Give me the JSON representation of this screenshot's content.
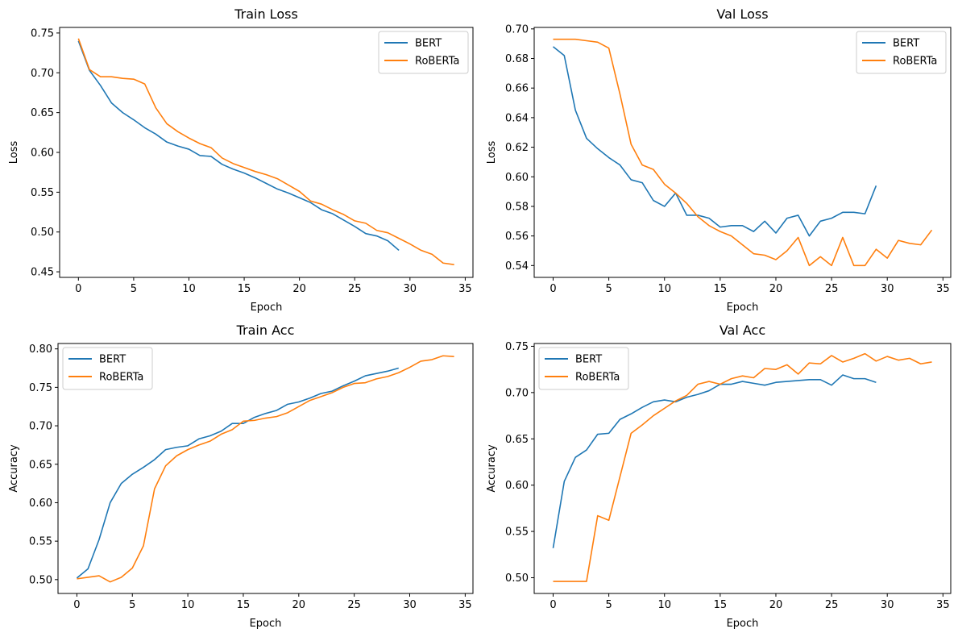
{
  "figure": {
    "background": "#ffffff"
  },
  "colors": {
    "BERT": "#1f77b4",
    "RoBERTa": "#ff7f0e"
  },
  "chart_data": [
    {
      "id": "train-loss",
      "type": "line",
      "title": "Train Loss",
      "xlabel": "Epoch",
      "ylabel": "Loss",
      "xlim": [
        -1.7,
        35.7
      ],
      "ylim": [
        0.443,
        0.757
      ],
      "xticks": [
        0,
        5,
        10,
        15,
        20,
        25,
        30,
        35
      ],
      "yticks": [
        0.45,
        0.5,
        0.55,
        0.6,
        0.65,
        0.7,
        0.75
      ],
      "ytick_labels": [
        "0.45",
        "0.50",
        "0.55",
        "0.60",
        "0.65",
        "0.70",
        "0.75"
      ],
      "legend": "upper right",
      "series": [
        {
          "name": "BERT",
          "color": "#1f77b4",
          "values": [
            0.74,
            0.703,
            0.684,
            0.662,
            0.65,
            0.641,
            0.631,
            0.623,
            0.613,
            0.608,
            0.604,
            0.596,
            0.595,
            0.585,
            0.579,
            0.574,
            0.568,
            0.561,
            0.554,
            0.549,
            0.543,
            0.537,
            0.528,
            0.523,
            0.515,
            0.507,
            0.498,
            0.495,
            0.489,
            0.477
          ]
        },
        {
          "name": "RoBERTa",
          "color": "#ff7f0e",
          "values": [
            0.743,
            0.704,
            0.695,
            0.695,
            0.693,
            0.692,
            0.686,
            0.656,
            0.636,
            0.626,
            0.618,
            0.611,
            0.606,
            0.593,
            0.586,
            0.581,
            0.576,
            0.572,
            0.567,
            0.559,
            0.551,
            0.539,
            0.535,
            0.528,
            0.522,
            0.514,
            0.511,
            0.502,
            0.499,
            0.492,
            0.485,
            0.477,
            0.472,
            0.461,
            0.459
          ]
        }
      ]
    },
    {
      "id": "val-loss",
      "type": "line",
      "title": "Val Loss",
      "xlabel": "Epoch",
      "ylabel": "Loss",
      "xlim": [
        -1.7,
        35.7
      ],
      "ylim": [
        0.532,
        0.701
      ],
      "xticks": [
        0,
        5,
        10,
        15,
        20,
        25,
        30,
        35
      ],
      "yticks": [
        0.54,
        0.56,
        0.58,
        0.6,
        0.62,
        0.64,
        0.66,
        0.68,
        0.7
      ],
      "ytick_labels": [
        "0.54",
        "0.56",
        "0.58",
        "0.60",
        "0.62",
        "0.64",
        "0.66",
        "0.68",
        "0.70"
      ],
      "legend": "upper right",
      "series": [
        {
          "name": "BERT",
          "color": "#1f77b4",
          "values": [
            0.688,
            0.682,
            0.645,
            0.626,
            0.619,
            0.613,
            0.608,
            0.598,
            0.596,
            0.584,
            0.58,
            0.589,
            0.574,
            0.574,
            0.572,
            0.566,
            0.567,
            0.567,
            0.563,
            0.57,
            0.562,
            0.572,
            0.574,
            0.56,
            0.57,
            0.572,
            0.576,
            0.576,
            0.575,
            0.594
          ]
        },
        {
          "name": "RoBERTa",
          "color": "#ff7f0e",
          "values": [
            0.693,
            0.693,
            0.693,
            0.692,
            0.691,
            0.687,
            0.656,
            0.622,
            0.608,
            0.605,
            0.595,
            0.589,
            0.582,
            0.573,
            0.567,
            0.563,
            0.56,
            0.554,
            0.548,
            0.547,
            0.544,
            0.55,
            0.559,
            0.54,
            0.546,
            0.54,
            0.559,
            0.54,
            0.54,
            0.551,
            0.545,
            0.557,
            0.555,
            0.554,
            0.564
          ]
        }
      ]
    },
    {
      "id": "train-acc",
      "type": "line",
      "title": "Train Acc",
      "xlabel": "Epoch",
      "ylabel": "Accuracy",
      "xlim": [
        -1.7,
        35.7
      ],
      "ylim": [
        0.482,
        0.807
      ],
      "xticks": [
        0,
        5,
        10,
        15,
        20,
        25,
        30,
        35
      ],
      "yticks": [
        0.5,
        0.55,
        0.6,
        0.65,
        0.7,
        0.75,
        0.8
      ],
      "ytick_labels": [
        "0.50",
        "0.55",
        "0.60",
        "0.65",
        "0.70",
        "0.75",
        "0.80"
      ],
      "legend": "upper left",
      "series": [
        {
          "name": "BERT",
          "color": "#1f77b4",
          "values": [
            0.502,
            0.514,
            0.552,
            0.6,
            0.625,
            0.637,
            0.646,
            0.656,
            0.669,
            0.672,
            0.674,
            0.683,
            0.687,
            0.693,
            0.703,
            0.703,
            0.711,
            0.716,
            0.72,
            0.728,
            0.731,
            0.736,
            0.742,
            0.745,
            0.752,
            0.758,
            0.765,
            0.768,
            0.771,
            0.775
          ]
        },
        {
          "name": "RoBERTa",
          "color": "#ff7f0e",
          "values": [
            0.501,
            0.503,
            0.505,
            0.497,
            0.503,
            0.515,
            0.544,
            0.618,
            0.648,
            0.661,
            0.669,
            0.675,
            0.68,
            0.689,
            0.695,
            0.706,
            0.707,
            0.71,
            0.712,
            0.717,
            0.725,
            0.733,
            0.738,
            0.743,
            0.75,
            0.755,
            0.756,
            0.761,
            0.764,
            0.769,
            0.776,
            0.784,
            0.786,
            0.791,
            0.79
          ]
        }
      ]
    },
    {
      "id": "val-acc",
      "type": "line",
      "title": "Val Acc",
      "xlabel": "Epoch",
      "ylabel": "Accuracy",
      "xlim": [
        -1.7,
        35.7
      ],
      "ylim": [
        0.483,
        0.753
      ],
      "xticks": [
        0,
        5,
        10,
        15,
        20,
        25,
        30,
        35
      ],
      "yticks": [
        0.5,
        0.55,
        0.6,
        0.65,
        0.7,
        0.75
      ],
      "ytick_labels": [
        "0.50",
        "0.55",
        "0.60",
        "0.65",
        "0.70",
        "0.75"
      ],
      "legend": "upper left",
      "series": [
        {
          "name": "BERT",
          "color": "#1f77b4",
          "values": [
            0.532,
            0.604,
            0.63,
            0.638,
            0.655,
            0.656,
            0.671,
            0.677,
            0.684,
            0.69,
            0.692,
            0.69,
            0.695,
            0.698,
            0.702,
            0.709,
            0.709,
            0.712,
            0.71,
            0.708,
            0.711,
            0.712,
            0.713,
            0.714,
            0.714,
            0.708,
            0.719,
            0.715,
            0.715,
            0.711
          ]
        },
        {
          "name": "RoBERTa",
          "color": "#ff7f0e",
          "values": [
            0.496,
            0.496,
            0.496,
            0.496,
            0.567,
            0.562,
            0.609,
            0.656,
            0.665,
            0.675,
            0.683,
            0.691,
            0.697,
            0.709,
            0.712,
            0.709,
            0.715,
            0.718,
            0.716,
            0.726,
            0.725,
            0.73,
            0.72,
            0.732,
            0.731,
            0.74,
            0.733,
            0.737,
            0.742,
            0.734,
            0.739,
            0.735,
            0.737,
            0.731,
            0.733
          ]
        }
      ]
    }
  ]
}
